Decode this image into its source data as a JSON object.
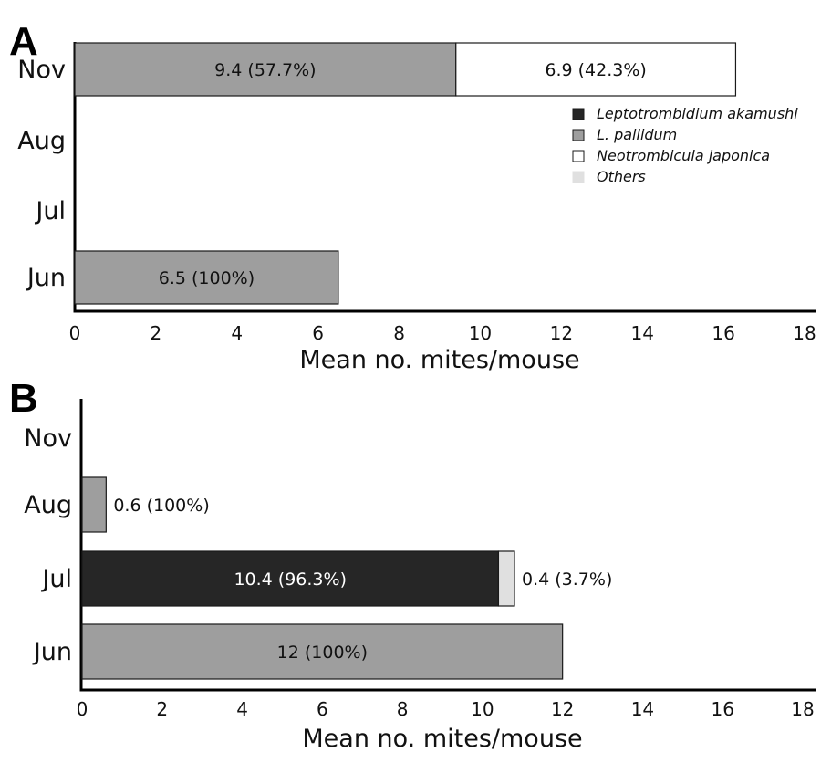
{
  "chart_data": [
    {
      "type": "bar",
      "orientation": "horizontal",
      "stacked": true,
      "panel_label": "A",
      "categories": [
        "Nov",
        "Aug",
        "Jul",
        "Jun"
      ],
      "series": [
        {
          "name": "Leptotrombidium akamushi",
          "color": "#262626",
          "values": [
            0,
            0,
            0,
            0
          ],
          "labels": [
            "",
            "",
            "",
            ""
          ]
        },
        {
          "name": "L. pallidum",
          "color": "#9e9e9e",
          "values": [
            9.4,
            0,
            0,
            6.5
          ],
          "labels": [
            "9.4 (57.7%)",
            "",
            "",
            "6.5 (100%)"
          ]
        },
        {
          "name": "Neotrombicula japonica",
          "color": "#ffffff",
          "values": [
            6.9,
            0,
            0,
            0
          ],
          "labels": [
            "6.9 (42.3%)",
            "",
            "",
            ""
          ]
        },
        {
          "name": "Others",
          "color": "#e0e0e0",
          "values": [
            0,
            0,
            0,
            0
          ],
          "labels": [
            "",
            "",
            "",
            ""
          ]
        }
      ],
      "xlabel": "Mean no. mites/mouse",
      "ylabel": "",
      "xlim": [
        0,
        18
      ],
      "xticks": [
        0,
        2,
        4,
        6,
        8,
        10,
        12,
        14,
        16,
        18
      ],
      "grid": false,
      "legend": "top-right"
    },
    {
      "type": "bar",
      "orientation": "horizontal",
      "stacked": true,
      "panel_label": "B",
      "categories": [
        "Nov",
        "Aug",
        "Jul",
        "Jun"
      ],
      "series": [
        {
          "name": "Leptotrombidium akamushi",
          "color": "#262626",
          "values": [
            0,
            0,
            10.4,
            0
          ],
          "labels": [
            "",
            "",
            "10.4 (96.3%)",
            ""
          ]
        },
        {
          "name": "L. pallidum",
          "color": "#9e9e9e",
          "values": [
            0,
            0.6,
            0,
            12
          ],
          "labels": [
            "",
            "0.6 (100%)",
            "",
            "12 (100%)"
          ]
        },
        {
          "name": "Neotrombicula japonica",
          "color": "#ffffff",
          "values": [
            0,
            0,
            0,
            0
          ],
          "labels": [
            "",
            "",
            "",
            ""
          ]
        },
        {
          "name": "Others",
          "color": "#e0e0e0",
          "values": [
            0,
            0,
            0.4,
            0
          ],
          "labels": [
            "",
            "",
            "0.4 (3.7%)",
            ""
          ]
        }
      ],
      "xlabel": "Mean no. mites/mouse",
      "ylabel": "",
      "xlim": [
        0,
        18
      ],
      "xticks": [
        0,
        2,
        4,
        6,
        8,
        10,
        12,
        14,
        16,
        18
      ],
      "grid": false,
      "legend": "none"
    }
  ]
}
